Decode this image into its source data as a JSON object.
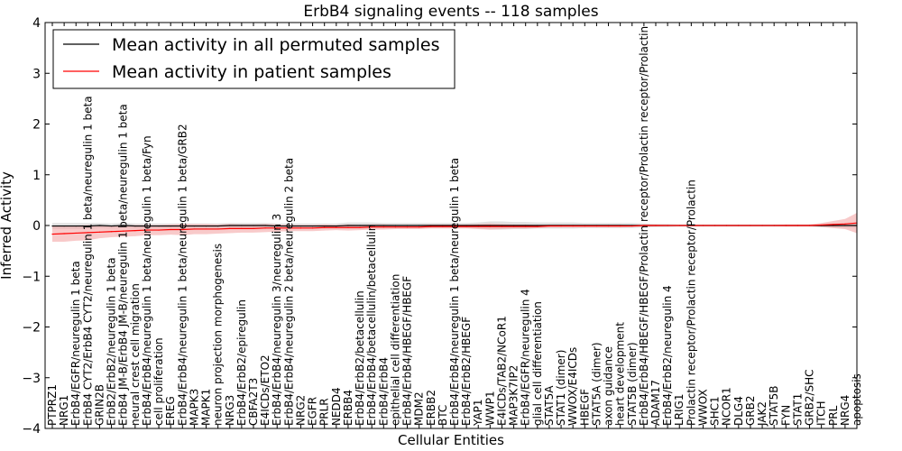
{
  "chart_data": {
    "type": "line",
    "title": "ErbB4 signaling events -- 118 samples",
    "xlabel": "Cellular Entities",
    "ylabel": "Inferred Activity",
    "ylim": [
      -4,
      4
    ],
    "yticks": [
      -4,
      -3,
      -2,
      -1,
      0,
      1,
      2,
      3,
      4
    ],
    "ytick_labels": [
      "−4",
      "−3",
      "−2",
      "−1",
      "0",
      "1",
      "2",
      "3",
      "4"
    ],
    "legend_position": "top-left",
    "categories": [
      "PTPRZ1",
      "NRG1",
      "ErbB4/EGFR/neuregulin 1 beta",
      "ErbB4 CYT2/ErbB4 CYT2/neuregulin 1 beta/neuregulin 1 beta",
      "GRIN2B",
      "ErbB2/ErbB2/neuregulin 1 beta",
      "ErbB4 JM-B/ErbB4 JM-B/neuregulin 1 beta/neuregulin 1 beta",
      "neural crest cell migration",
      "ErbB4/ErbB4/neuregulin 1 beta/neuregulin 1 beta/Fyn",
      "cell proliferation",
      "EREG",
      "ErbB4/ErbB4/neuregulin 1 beta/neuregulin 1 beta/GRB2",
      "MAPK3",
      "MAPK1",
      "neuron projection morphogenesis",
      "NRG3",
      "ErbB4/ErbB2/epiregulin",
      "CBFA2T3",
      "E4ICDs/ETO2",
      "ErbB4/ErbB4/neuregulin 3/neuregulin 3",
      "ErbB4/ErbB4/neuregulin 2 beta/neuregulin 2 beta",
      "NRG2",
      "EGFR",
      "PRLR",
      "NEDD4",
      "ERBB4",
      "ErbB4/ErbB2/betacellulin",
      "ErbB4/ErbB4/betacellulin/betacellulin",
      "ErbB4/ErbB4",
      "epithelial cell differentiation",
      "ErbB4/ErbB4/HBEGF/HBEGF",
      "MDM2",
      "ERBB2",
      "BTC",
      "ErbB4/ErbB4/neuregulin 1 beta/neuregulin 1 beta",
      "ErbB4/ErbB2/HBEGF",
      "YAP1",
      "WWP1",
      "E4ICDs/TAB2/NCoR1",
      "MAP3K7IP2",
      "ErbB4/EGFR/neuregulin 4",
      "glial cell differentiation",
      "STAT5A",
      "STAT1 (dimer)",
      "WWOX/E4ICDs",
      "HBEGF",
      "STAT5A (dimer)",
      "axon guidance",
      "heart development",
      "STAT5B (dimer)",
      "ErbB4/ErbB4/HBEGF/HBEGF/Prolactin receptor/Prolactin receptor/Prolactin",
      "ADAM17",
      "ErbB4/ErbB2/neuregulin 4",
      "LRIG1",
      "Prolactin receptor/Prolactin receptor/Prolactin",
      "WWOX",
      "SHC1",
      "NCOR1",
      "DLG4",
      "GRB2",
      "JAK2",
      "STAT5B",
      "FYN",
      "STAT1",
      "GRB2/SHC",
      "ITCH",
      "PRL",
      "NRG4",
      "apoptosis"
    ],
    "series": [
      {
        "name": "Mean activity in all permuted samples",
        "color": "#000000",
        "band_color": "#c8c8c8",
        "values": [
          -0.01,
          -0.01,
          -0.01,
          -0.01,
          0,
          -0.01,
          0,
          -0.01,
          -0.01,
          -0.01,
          -0.01,
          -0.01,
          -0.01,
          -0.01,
          -0.01,
          0,
          0,
          0,
          0,
          -0.01,
          -0.01,
          -0.01,
          -0.01,
          -0.01,
          -0.01,
          0,
          0,
          0,
          0,
          0,
          0,
          0,
          0,
          0,
          0,
          0,
          0,
          0,
          0,
          0,
          0,
          0,
          0,
          0,
          0,
          0,
          0,
          0,
          0,
          0,
          0,
          0,
          0,
          0,
          0,
          0,
          0,
          0,
          0,
          0,
          0,
          0,
          0,
          0,
          0,
          0,
          0,
          0,
          0
        ],
        "band_halfwidth": [
          0.06,
          0.06,
          0.06,
          0.06,
          0.05,
          0.05,
          0.05,
          0.05,
          0.05,
          0.05,
          0.05,
          0.05,
          0.05,
          0.05,
          0.05,
          0.05,
          0.05,
          0.05,
          0.05,
          0.05,
          0.05,
          0.05,
          0.05,
          0.05,
          0.05,
          0.06,
          0.06,
          0.06,
          0.05,
          0.05,
          0.05,
          0.05,
          0.05,
          0.05,
          0.05,
          0.05,
          0.06,
          0.08,
          0.08,
          0.07,
          0.07,
          0.06,
          0.06,
          0.06,
          0.06,
          0.05,
          0.05,
          0.05,
          0.05,
          0.05,
          0.04,
          0.03,
          0.03,
          0.02,
          0.02,
          0.02,
          0.02,
          0.02,
          0.02,
          0.02,
          0.02,
          0.02,
          0.02,
          0.02,
          0.02,
          0.03,
          0.04,
          0.05,
          0.05
        ]
      },
      {
        "name": "Mean activity in patient samples",
        "color": "#ff0000",
        "band_color": "#f4a6a6",
        "values": [
          -0.17,
          -0.16,
          -0.15,
          -0.14,
          -0.13,
          -0.12,
          -0.11,
          -0.1,
          -0.09,
          -0.09,
          -0.08,
          -0.08,
          -0.07,
          -0.07,
          -0.07,
          -0.06,
          -0.06,
          -0.06,
          -0.05,
          -0.05,
          -0.05,
          -0.05,
          -0.05,
          -0.04,
          -0.04,
          -0.04,
          -0.04,
          -0.03,
          -0.03,
          -0.03,
          -0.03,
          -0.03,
          -0.02,
          -0.02,
          -0.02,
          -0.02,
          -0.02,
          -0.02,
          -0.02,
          -0.02,
          -0.02,
          -0.02,
          -0.01,
          -0.01,
          -0.01,
          -0.01,
          -0.01,
          -0.01,
          -0.01,
          -0.01,
          0,
          0,
          0,
          0,
          0,
          0,
          0,
          0,
          0,
          0,
          0,
          0,
          0,
          0,
          0,
          0.01,
          0.02,
          0.03,
          0.05
        ],
        "band_halfwidth": [
          0.15,
          0.16,
          0.15,
          0.15,
          0.12,
          0.11,
          0.11,
          0.11,
          0.1,
          0.1,
          0.1,
          0.11,
          0.1,
          0.1,
          0.09,
          0.09,
          0.08,
          0.08,
          0.08,
          0.07,
          0.06,
          0.06,
          0.06,
          0.06,
          0.05,
          0.06,
          0.05,
          0.05,
          0.05,
          0.04,
          0.04,
          0.04,
          0.04,
          0.04,
          0.04,
          0.04,
          0.05,
          0.06,
          0.05,
          0.04,
          0.04,
          0.03,
          0.03,
          0.03,
          0.03,
          0.03,
          0.03,
          0.03,
          0.03,
          0.02,
          0.02,
          0.02,
          0.01,
          0.01,
          0.01,
          0.01,
          0.01,
          0.01,
          0.01,
          0.01,
          0.01,
          0.01,
          0.02,
          0.02,
          0.02,
          0.04,
          0.07,
          0.1,
          0.2
        ]
      }
    ]
  }
}
